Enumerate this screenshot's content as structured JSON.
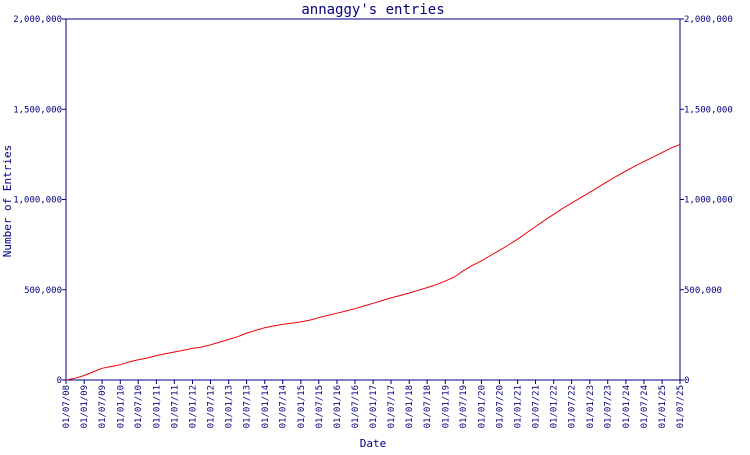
{
  "chart_data": {
    "type": "line",
    "title": "annaggy's entries",
    "xlabel": "Date",
    "ylabel": "Number of Entries",
    "ylim": [
      0,
      2000000
    ],
    "y_ticks": [
      0,
      500000,
      1000000,
      1500000,
      2000000
    ],
    "y_tick_labels": [
      "0",
      "500,000",
      "1,000,000",
      "1,500,000",
      "2,000,000"
    ],
    "x_tick_labels": [
      "01/07/08",
      "01/01/09",
      "01/07/09",
      "01/01/10",
      "01/07/10",
      "01/01/11",
      "01/07/11",
      "01/01/12",
      "01/07/12",
      "01/01/13",
      "01/07/13",
      "01/01/14",
      "01/07/14",
      "01/01/15",
      "01/07/15",
      "01/01/16",
      "01/07/16",
      "01/01/17",
      "01/07/17",
      "01/01/18",
      "01/07/18",
      "01/01/19",
      "01/07/19",
      "01/01/20",
      "01/07/20",
      "01/01/21",
      "01/07/21",
      "01/01/22",
      "01/07/22",
      "01/01/23",
      "01/07/23",
      "01/01/24",
      "01/07/24",
      "01/01/25",
      "01/07/25"
    ],
    "grid": false,
    "colors": {
      "line": "#e8000b",
      "axis": "#000080",
      "text": "#000080"
    },
    "series": [
      {
        "x": [
          "01/07/08",
          "01/10/08",
          "01/01/09",
          "01/04/09",
          "01/07/09",
          "01/10/09",
          "01/01/10",
          "01/04/10",
          "01/07/10",
          "01/10/10",
          "01/01/11",
          "01/04/11",
          "01/07/11",
          "01/10/11",
          "01/01/12",
          "01/04/12",
          "01/07/12",
          "01/10/12",
          "01/01/13",
          "01/04/13",
          "01/07/13",
          "01/10/13",
          "01/01/14",
          "01/04/14",
          "01/07/14",
          "01/10/14",
          "01/01/15",
          "01/04/15",
          "01/07/15",
          "01/10/15",
          "01/01/16",
          "01/04/16",
          "01/07/16",
          "01/10/16",
          "01/01/17",
          "01/04/17",
          "01/07/17",
          "01/10/17",
          "01/01/18",
          "01/04/18",
          "01/07/18",
          "01/10/18",
          "01/01/19",
          "01/04/19",
          "01/07/19",
          "01/10/19",
          "01/01/20",
          "01/04/20",
          "01/07/20",
          "01/10/20",
          "01/01/21",
          "01/04/21",
          "01/07/21",
          "01/10/21",
          "01/01/22",
          "01/04/22",
          "01/07/22",
          "01/10/22",
          "01/01/23",
          "01/04/23",
          "01/07/23",
          "01/10/23",
          "01/01/24",
          "01/04/24",
          "01/07/24",
          "01/10/24",
          "01/01/25",
          "01/04/25",
          "01/07/25"
        ],
        "values": [
          0,
          10000,
          25000,
          45000,
          65000,
          75000,
          85000,
          100000,
          112000,
          122000,
          135000,
          145000,
          155000,
          165000,
          175000,
          182000,
          195000,
          210000,
          225000,
          240000,
          260000,
          275000,
          290000,
          300000,
          308000,
          315000,
          322000,
          332000,
          345000,
          358000,
          370000,
          382000,
          395000,
          410000,
          425000,
          440000,
          455000,
          468000,
          482000,
          497000,
          512000,
          528000,
          548000,
          570000,
          605000,
          635000,
          660000,
          690000,
          718000,
          748000,
          780000,
          815000,
          850000,
          885000,
          918000,
          950000,
          980000,
          1010000,
          1040000,
          1070000,
          1100000,
          1130000,
          1158000,
          1185000,
          1210000,
          1235000,
          1260000,
          1285000,
          1305000
        ]
      }
    ]
  }
}
